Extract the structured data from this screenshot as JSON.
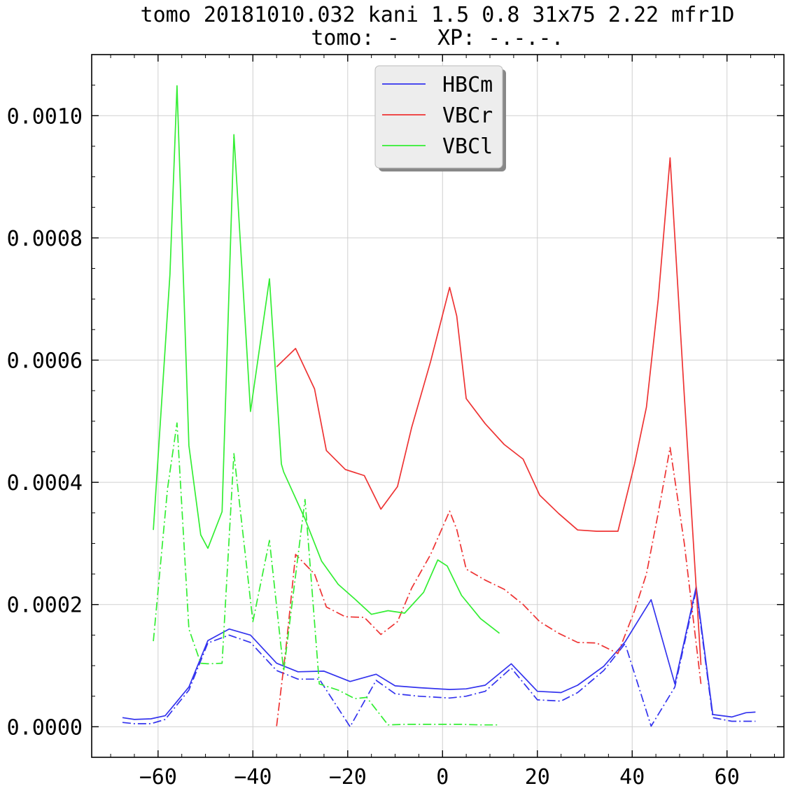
{
  "chart_data": {
    "type": "line",
    "title": "tomo 20181010.032 kani 1.5 0.8 31x75 2.22 mfr1D",
    "subtitle": "tomo: -   XP: -.-.-.",
    "xlabel": "",
    "ylabel": "",
    "xlim": [
      -74,
      72
    ],
    "ylim": [
      -5e-05,
      0.0011
    ],
    "xticks": [
      -60,
      -40,
      -20,
      0,
      20,
      40,
      60
    ],
    "xtick_labels": [
      "−60",
      "−40",
      "−20",
      "0",
      "20",
      "40",
      "60"
    ],
    "yticks": [
      0.0,
      0.0002,
      0.0004,
      0.0006,
      0.0008,
      0.001
    ],
    "ytick_labels": [
      "0.0000",
      "0.0002",
      "0.0004",
      "0.0006",
      "0.0008",
      "0.0010"
    ],
    "grid": true,
    "legend_position": "top-center",
    "series": [
      {
        "name": "HBCm",
        "color": "#3333ee",
        "dash": "solid",
        "points": [
          [
            -67.5,
            1.5e-05
          ],
          [
            -65.0,
            1.2e-05
          ],
          [
            -61.5,
            1.3e-05
          ],
          [
            -58.5,
            1.8e-05
          ],
          [
            -53.5,
            6.5e-05
          ],
          [
            -49.5,
            0.000141
          ],
          [
            -45.0,
            0.00016
          ],
          [
            -40.5,
            0.00015
          ],
          [
            -35.0,
            0.000104
          ],
          [
            -30.5,
            9e-05
          ],
          [
            -25.0,
            9.1e-05
          ],
          [
            -19.5,
            7.4e-05
          ],
          [
            -14.0,
            8.6e-05
          ],
          [
            -10.0,
            6.7e-05
          ],
          [
            -5.0,
            6.4e-05
          ],
          [
            1.5,
            6.1e-05
          ],
          [
            5.0,
            6.2e-05
          ],
          [
            9.0,
            6.8e-05
          ],
          [
            14.5,
            0.000103
          ],
          [
            20.0,
            5.8e-05
          ],
          [
            25.0,
            5.6e-05
          ],
          [
            28.5,
            6.8e-05
          ],
          [
            34.0,
            9.9e-05
          ],
          [
            38.5,
            0.000139
          ],
          [
            44.0,
            0.000208
          ],
          [
            49.0,
            7e-05
          ],
          [
            53.5,
            0.000229
          ],
          [
            57.0,
            2e-05
          ],
          [
            61.0,
            1.6e-05
          ],
          [
            64.0,
            2.3e-05
          ],
          [
            66.0,
            2.4e-05
          ]
        ]
      },
      {
        "name": "",
        "color": "#3333ee",
        "dash": "dashdot",
        "points": [
          [
            -67.5,
            7e-06
          ],
          [
            -65.0,
            5e-06
          ],
          [
            -61.5,
            5e-06
          ],
          [
            -58.5,
            1.2e-05
          ],
          [
            -53.5,
            6e-05
          ],
          [
            -49.5,
            0.000137
          ],
          [
            -45.0,
            0.00015
          ],
          [
            -40.5,
            0.000138
          ],
          [
            -35.0,
            9.2e-05
          ],
          [
            -30.5,
            7.8e-05
          ],
          [
            -26.0,
            7.8e-05
          ],
          [
            -19.5,
            0.0
          ],
          [
            -14.0,
            7.6e-05
          ],
          [
            -10.0,
            5.4e-05
          ],
          [
            -5.0,
            5e-05
          ],
          [
            1.5,
            4.7e-05
          ],
          [
            5.0,
            5e-05
          ],
          [
            9.0,
            5.8e-05
          ],
          [
            14.5,
            9.6e-05
          ],
          [
            20.0,
            4.4e-05
          ],
          [
            25.0,
            4.2e-05
          ],
          [
            28.5,
            5.6e-05
          ],
          [
            34.0,
            9.2e-05
          ],
          [
            38.5,
            0.000136
          ],
          [
            44.0,
            1e-06
          ],
          [
            49.0,
            6.5e-05
          ],
          [
            53.5,
            0.000224
          ],
          [
            57.0,
            1.5e-05
          ],
          [
            61.0,
            9e-06
          ],
          [
            64.0,
            9e-06
          ],
          [
            66.0,
            9e-06
          ]
        ]
      },
      {
        "name": "VBCr",
        "color": "#ee3333",
        "dash": "solid",
        "points": [
          [
            -35.0,
            0.000589
          ],
          [
            -31.0,
            0.000619
          ],
          [
            -27.0,
            0.000553
          ],
          [
            -24.5,
            0.000452
          ],
          [
            -20.5,
            0.000421
          ],
          [
            -16.5,
            0.000411
          ],
          [
            -13.0,
            0.000356
          ],
          [
            -9.5,
            0.000393
          ],
          [
            -6.5,
            0.00049
          ],
          [
            -2.5,
            0.000598
          ],
          [
            1.5,
            0.000719
          ],
          [
            3.0,
            0.000672
          ],
          [
            5.0,
            0.000537
          ],
          [
            9.0,
            0.000496
          ],
          [
            13.0,
            0.000462
          ],
          [
            17.0,
            0.000438
          ],
          [
            20.5,
            0.000379
          ],
          [
            24.5,
            0.000349
          ],
          [
            28.5,
            0.000322
          ],
          [
            32.5,
            0.00032
          ],
          [
            37.0,
            0.00032
          ],
          [
            40.5,
            0.00043
          ],
          [
            43.0,
            0.000523
          ],
          [
            45.5,
            0.0007
          ],
          [
            48.0,
            0.000931
          ],
          [
            51.0,
            0.000542
          ],
          [
            54.5,
            0.000101
          ]
        ]
      },
      {
        "name": "",
        "color": "#ee3333",
        "dash": "dashdot",
        "points": [
          [
            -35.0,
            1e-06
          ],
          [
            -33.0,
            0.00013
          ],
          [
            -31.0,
            0.000282
          ],
          [
            -27.0,
            0.00025
          ],
          [
            -24.5,
            0.000196
          ],
          [
            -20.5,
            0.00018
          ],
          [
            -16.5,
            0.000179
          ],
          [
            -13.0,
            0.000151
          ],
          [
            -9.5,
            0.000172
          ],
          [
            -6.5,
            0.000227
          ],
          [
            -2.5,
            0.000282
          ],
          [
            1.5,
            0.000353
          ],
          [
            3.0,
            0.000323
          ],
          [
            5.0,
            0.000258
          ],
          [
            9.0,
            0.00024
          ],
          [
            13.0,
            0.000225
          ],
          [
            17.0,
            0.0002
          ],
          [
            20.5,
            0.000172
          ],
          [
            24.5,
            0.000153
          ],
          [
            28.5,
            0.000138
          ],
          [
            32.5,
            0.000137
          ],
          [
            37.0,
            0.00012
          ],
          [
            40.5,
            0.00019
          ],
          [
            43.0,
            0.00025
          ],
          [
            45.5,
            0.00035
          ],
          [
            48.0,
            0.000457
          ],
          [
            51.0,
            0.0003
          ],
          [
            54.5,
            7e-05
          ]
        ]
      },
      {
        "name": "VBCl",
        "color": "#33ee33",
        "dash": "solid",
        "points": [
          [
            -61.0,
            0.000322
          ],
          [
            -57.5,
            0.00074
          ],
          [
            -56.0,
            0.001049
          ],
          [
            -53.5,
            0.00046
          ],
          [
            -51.0,
            0.000314
          ],
          [
            -49.5,
            0.000292
          ],
          [
            -46.5,
            0.000352
          ],
          [
            -44.0,
            0.000969
          ],
          [
            -40.5,
            0.000516
          ],
          [
            -36.5,
            0.000733
          ],
          [
            -34.0,
            0.00043
          ],
          [
            -33.5,
            0.000417
          ],
          [
            -29.0,
            0.00034
          ],
          [
            -25.5,
            0.000271
          ],
          [
            -22.0,
            0.000233
          ],
          [
            -18.5,
            0.000209
          ],
          [
            -15.0,
            0.000184
          ],
          [
            -11.5,
            0.00019
          ],
          [
            -8.0,
            0.000186
          ],
          [
            -4.0,
            0.00022
          ],
          [
            -1.0,
            0.000273
          ],
          [
            1.0,
            0.000263
          ],
          [
            4.0,
            0.000215
          ],
          [
            8.0,
            0.000177
          ],
          [
            12.0,
            0.000153
          ]
        ]
      },
      {
        "name": "",
        "color": "#33ee33",
        "dash": "dashdot",
        "points": [
          [
            -61.0,
            0.00014
          ],
          [
            -58.0,
            0.00039
          ],
          [
            -56.0,
            0.000497
          ],
          [
            -53.5,
            0.00016
          ],
          [
            -51.0,
            0.000104
          ],
          [
            -49.5,
            0.000103
          ],
          [
            -46.5,
            0.000104
          ],
          [
            -44.0,
            0.000447
          ],
          [
            -40.0,
            0.000172
          ],
          [
            -36.5,
            0.000305
          ],
          [
            -33.5,
            9.1e-05
          ],
          [
            -29.0,
            0.000372
          ],
          [
            -26.0,
            7e-05
          ],
          [
            -22.0,
            6e-05
          ],
          [
            -18.5,
            4.6e-05
          ],
          [
            -16.0,
            4.8e-05
          ],
          [
            -11.5,
            3e-06
          ],
          [
            -8.0,
            4e-06
          ],
          [
            -4.0,
            4e-06
          ],
          [
            0.0,
            4e-06
          ],
          [
            4.0,
            4e-06
          ],
          [
            8.0,
            3e-06
          ],
          [
            12.0,
            3e-06
          ]
        ]
      }
    ]
  }
}
